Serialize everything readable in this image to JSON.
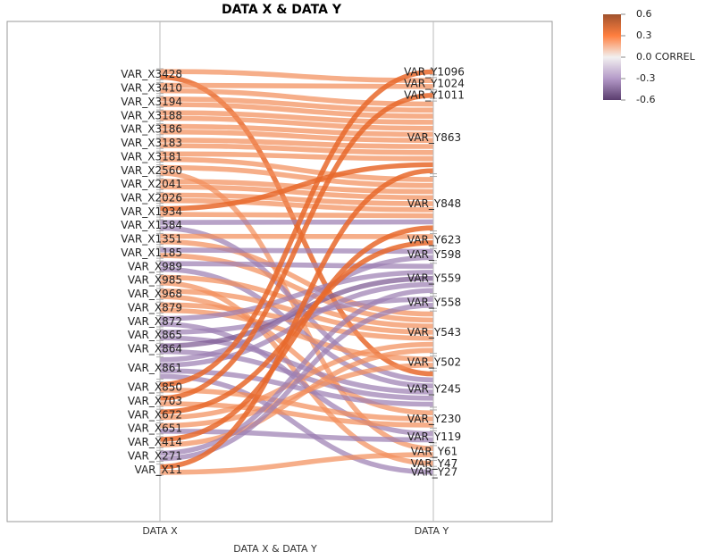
{
  "chart_data": {
    "type": "parallel-sets",
    "title": "DATA X & DATA Y",
    "xlabel": "DATA X & DATA Y",
    "axes": [
      "DATA X",
      "DATA Y"
    ],
    "color_legend": {
      "title": "CORREL",
      "ticks": [
        "0.6",
        "0.3",
        "0.0",
        "-0.3",
        "-0.6"
      ],
      "range": [
        -0.6,
        0.6
      ],
      "colors": {
        "high": "#a0522d",
        "mid_high": "#ff7f3f",
        "zero": "#f2f0f0",
        "mid_low": "#b49ac8",
        "low": "#5a3d6e"
      }
    },
    "left_nodes": [
      "VAR_X3428",
      "VAR_X3410",
      "VAR_X3194",
      "VAR_X3188",
      "VAR_X3186",
      "VAR_X3183",
      "VAR_X3181",
      "VAR_X2560",
      "VAR_X2041",
      "VAR_X2026",
      "VAR_X1934",
      "VAR_X1584",
      "VAR_X1351",
      "VAR_X1185",
      "VAR_X989",
      "VAR_X985",
      "VAR_X968",
      "VAR_X879",
      "VAR_X872",
      "VAR_X865",
      "VAR_X864",
      "VAR_X861",
      "VAR_X850",
      "VAR_X703",
      "VAR_X672",
      "VAR_X651",
      "VAR_X414",
      "VAR_X271",
      "VAR_X11"
    ],
    "right_nodes": [
      "VAR_Y1096",
      "VAR_Y1024",
      "VAR_Y1011",
      "VAR_Y863",
      "VAR_Y848",
      "VAR_Y623",
      "VAR_Y598",
      "VAR_Y559",
      "VAR_Y558",
      "VAR_Y543",
      "VAR_Y502",
      "VAR_Y245",
      "VAR_Y230",
      "VAR_Y119",
      "VAR_Y61",
      "VAR_Y47",
      "VAR_Y27"
    ],
    "links": [
      {
        "source": "VAR_X3428",
        "target": "VAR_Y1024",
        "correl": 0.35
      },
      {
        "source": "VAR_X3428",
        "target": "VAR_Y245",
        "correl": 0.45
      },
      {
        "source": "VAR_X3410",
        "target": "VAR_Y1024",
        "correl": 0.35
      },
      {
        "source": "VAR_X3410",
        "target": "VAR_Y863",
        "correl": 0.35
      },
      {
        "source": "VAR_X3194",
        "target": "VAR_Y863",
        "correl": 0.35
      },
      {
        "source": "VAR_X3194",
        "target": "VAR_Y863",
        "correl": 0.35
      },
      {
        "source": "VAR_X3188",
        "target": "VAR_Y863",
        "correl": 0.35
      },
      {
        "source": "VAR_X3188",
        "target": "VAR_Y863",
        "correl": 0.35
      },
      {
        "source": "VAR_X3186",
        "target": "VAR_Y863",
        "correl": 0.35
      },
      {
        "source": "VAR_X3186",
        "target": "VAR_Y863",
        "correl": 0.35
      },
      {
        "source": "VAR_X3183",
        "target": "VAR_Y863",
        "correl": 0.35
      },
      {
        "source": "VAR_X3183",
        "target": "VAR_Y863",
        "correl": 0.35
      },
      {
        "source": "VAR_X3181",
        "target": "VAR_Y863",
        "correl": 0.35
      },
      {
        "source": "VAR_X3181",
        "target": "VAR_Y848",
        "correl": 0.35
      },
      {
        "source": "VAR_X2560",
        "target": "VAR_Y848",
        "correl": 0.35
      },
      {
        "source": "VAR_X2560",
        "target": "VAR_Y61",
        "correl": 0.4
      },
      {
        "source": "VAR_X2041",
        "target": "VAR_Y848",
        "correl": 0.35
      },
      {
        "source": "VAR_X2041",
        "target": "VAR_Y848",
        "correl": 0.35
      },
      {
        "source": "VAR_X2026",
        "target": "VAR_Y848",
        "correl": 0.35
      },
      {
        "source": "VAR_X2026",
        "target": "VAR_Y848",
        "correl": 0.35
      },
      {
        "source": "VAR_X1934",
        "target": "VAR_Y848",
        "correl": 0.35
      },
      {
        "source": "VAR_X1934",
        "target": "VAR_Y863",
        "correl": 0.45
      },
      {
        "source": "VAR_X1584",
        "target": "VAR_Y848",
        "correl": -0.25
      },
      {
        "source": "VAR_X1584",
        "target": "VAR_Y245",
        "correl": -0.3
      },
      {
        "source": "VAR_X1351",
        "target": "VAR_Y623",
        "correl": 0.35
      },
      {
        "source": "VAR_X1351",
        "target": "VAR_Y543",
        "correl": 0.35
      },
      {
        "source": "VAR_X1185",
        "target": "VAR_Y543",
        "correl": 0.35
      },
      {
        "source": "VAR_X1185",
        "target": "VAR_Y598",
        "correl": -0.3
      },
      {
        "source": "VAR_X989",
        "target": "VAR_Y559",
        "correl": -0.35
      },
      {
        "source": "VAR_X989",
        "target": "VAR_Y245",
        "correl": -0.35
      },
      {
        "source": "VAR_X985",
        "target": "VAR_Y543",
        "correl": 0.35
      },
      {
        "source": "VAR_X985",
        "target": "VAR_Y47",
        "correl": 0.4
      },
      {
        "source": "VAR_X968",
        "target": "VAR_Y543",
        "correl": 0.35
      },
      {
        "source": "VAR_X968",
        "target": "VAR_Y230",
        "correl": 0.4
      },
      {
        "source": "VAR_X879",
        "target": "VAR_Y543",
        "correl": 0.4
      },
      {
        "source": "VAR_X879",
        "target": "VAR_Y502",
        "correl": 0.35
      },
      {
        "source": "VAR_X872",
        "target": "VAR_Y559",
        "correl": -0.3
      },
      {
        "source": "VAR_X872",
        "target": "VAR_Y119",
        "correl": -0.3
      },
      {
        "source": "VAR_X865",
        "target": "VAR_Y558",
        "correl": -0.35
      },
      {
        "source": "VAR_X865",
        "target": "VAR_Y245",
        "correl": -0.35
      },
      {
        "source": "VAR_X864",
        "target": "VAR_Y559",
        "correl": -0.4
      },
      {
        "source": "VAR_X864",
        "target": "VAR_Y245",
        "correl": -0.35
      },
      {
        "source": "VAR_X861",
        "target": "VAR_Y598",
        "correl": -0.3
      },
      {
        "source": "VAR_X861",
        "target": "VAR_Y559",
        "correl": -0.3
      },
      {
        "source": "VAR_X861",
        "target": "VAR_Y245",
        "correl": -0.3
      },
      {
        "source": "VAR_X861",
        "target": "VAR_Y27",
        "correl": -0.3
      },
      {
        "source": "VAR_X850",
        "target": "VAR_Y230",
        "correl": 0.35
      },
      {
        "source": "VAR_X850",
        "target": "VAR_Y1096",
        "correl": 0.45
      },
      {
        "source": "VAR_X703",
        "target": "VAR_Y230",
        "correl": 0.35
      },
      {
        "source": "VAR_X703",
        "target": "VAR_Y1011",
        "correl": 0.45
      },
      {
        "source": "VAR_X672",
        "target": "VAR_Y543",
        "correl": 0.35
      },
      {
        "source": "VAR_X672",
        "target": "VAR_Y623",
        "correl": 0.45
      },
      {
        "source": "VAR_X651",
        "target": "VAR_Y119",
        "correl": -0.3
      },
      {
        "source": "VAR_X651",
        "target": "VAR_Y502",
        "correl": 0.35
      },
      {
        "source": "VAR_X414",
        "target": "VAR_Y543",
        "correl": 0.35
      },
      {
        "source": "VAR_X414",
        "target": "VAR_Y848",
        "correl": 0.45
      },
      {
        "source": "VAR_X271",
        "target": "VAR_Y559",
        "correl": -0.35
      },
      {
        "source": "VAR_X271",
        "target": "VAR_Y558",
        "correl": -0.35
      },
      {
        "source": "VAR_X11",
        "target": "VAR_Y863",
        "correl": 0.45
      },
      {
        "source": "VAR_X11",
        "target": "VAR_Y61",
        "correl": 0.35
      }
    ]
  }
}
